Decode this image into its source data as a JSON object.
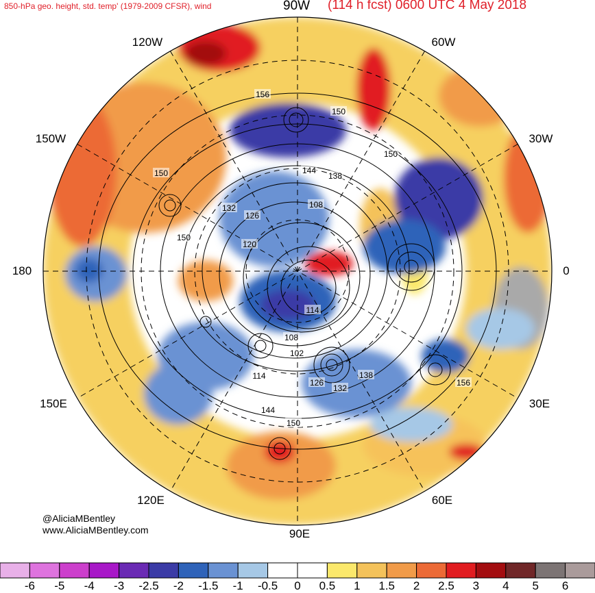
{
  "header": {
    "left_title": "850-hPa geo. height, std. temp' (1979-2009 CFSR), wind",
    "center_label": "90W",
    "right_title": "(114 h fcst) 0600 UTC 4 May 2018"
  },
  "credit": {
    "twitter": "@AliciaMBentley",
    "website": "www.AliciaMBentley.com"
  },
  "map": {
    "projection": "north polar stereographic",
    "longitude_labels": [
      "90W",
      "60W",
      "30W",
      "0",
      "30E",
      "60E",
      "90E",
      "120E",
      "150E",
      "180",
      "150W",
      "120W"
    ],
    "contour_labels": [
      "156",
      "150",
      "150",
      "150",
      "150",
      "144",
      "138",
      "132",
      "126",
      "120",
      "108",
      "114",
      "108",
      "102",
      "114",
      "126",
      "132",
      "138",
      "144",
      "150",
      "156"
    ]
  },
  "colorbar": {
    "colors": [
      "#e8b0e8",
      "#de73de",
      "#cc3fcc",
      "#a818c8",
      "#6a2ab4",
      "#3b3ba6",
      "#2f63b9",
      "#6a92d3",
      "#a6c8e6",
      "#ffffff",
      "#ffffff",
      "#fbe86b",
      "#f4c25a",
      "#f19b49",
      "#ec6a36",
      "#e11c20",
      "#a30d10",
      "#702728",
      "#7c7474",
      "#aa9b9b"
    ],
    "tick_labels": [
      "-6",
      "-5",
      "-4",
      "-3",
      "-2.5",
      "-2",
      "-1.5",
      "-1",
      "-0.5",
      "0",
      "0.5",
      "1",
      "1.5",
      "2",
      "2.5",
      "3",
      "4",
      "5",
      "6"
    ]
  }
}
